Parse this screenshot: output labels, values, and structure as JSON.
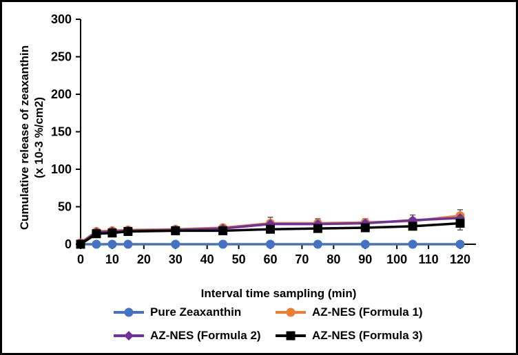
{
  "frame": {
    "border_color": "#000000",
    "background": "#FFFFFF"
  },
  "chart_data": {
    "type": "line",
    "title": "",
    "xlabel": "Interval time sampling (min)",
    "ylabel_line1": "Cumulative release of zeaxanthin",
    "ylabel_line2": "(x 10-3 %/cm2)",
    "x": [
      0,
      5,
      10,
      15,
      30,
      45,
      60,
      75,
      90,
      105,
      120
    ],
    "xticks": [
      0,
      10,
      20,
      30,
      40,
      50,
      60,
      70,
      80,
      90,
      100,
      110,
      120
    ],
    "yticks": [
      0,
      50,
      100,
      150,
      200,
      250,
      300
    ],
    "xlim": [
      0,
      125
    ],
    "ylim": [
      0,
      300
    ],
    "grid": false,
    "legend_position": "bottom",
    "error_bar_color": "#595959",
    "series": [
      {
        "name": "Pure Zeaxanthin",
        "color": "#4472C4",
        "marker": "circle",
        "values": [
          0,
          0,
          0,
          0,
          0,
          0,
          0,
          0,
          0,
          0,
          0
        ],
        "errors": [
          0,
          0,
          0,
          0,
          0,
          0,
          0,
          0,
          0,
          0,
          0
        ]
      },
      {
        "name": "AZ-NES (Formula 1)",
        "color": "#ED7D31",
        "marker": "circle",
        "values": [
          2,
          17,
          18,
          19,
          20,
          22,
          28,
          28,
          29,
          31,
          38
        ],
        "errors": [
          0,
          1,
          1,
          1,
          1,
          2,
          8,
          6,
          5,
          4,
          8
        ]
      },
      {
        "name": "AZ-NES (Formula 2)",
        "color": "#7030A0",
        "marker": "diamond",
        "values": [
          1,
          16,
          17,
          18,
          19,
          21,
          27,
          27,
          28,
          32,
          35
        ],
        "errors": [
          0,
          1,
          1,
          1,
          1,
          1,
          2,
          2,
          2,
          7,
          2
        ]
      },
      {
        "name": "AZ-NES (Formula 3)",
        "color": "#000000",
        "marker": "square",
        "values": [
          0,
          14,
          15,
          17,
          18,
          18,
          20,
          21,
          22,
          24,
          28
        ],
        "errors": [
          0,
          2,
          3,
          3,
          2,
          2,
          2,
          2,
          2,
          3,
          9
        ]
      }
    ]
  }
}
